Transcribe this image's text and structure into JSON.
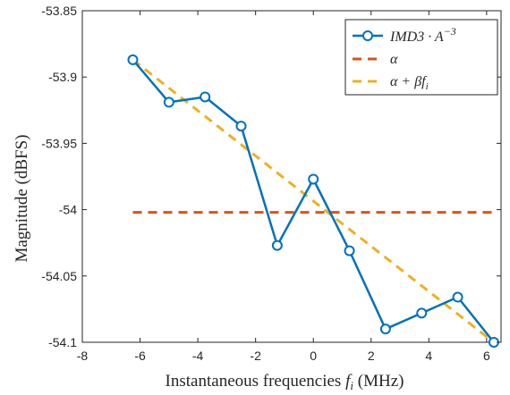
{
  "chart_data": {
    "type": "line",
    "title": "",
    "xlabel": "Instantaneous frequencies f_i (MHz)",
    "xlabel_main": "Instantaneous frequencies ",
    "xlabel_var": "f",
    "xlabel_sub": "i",
    "xlabel_unit": " (MHz)",
    "ylabel": "Magnitude (dBFS)",
    "xlim": [
      -8,
      6.5
    ],
    "ylim": [
      -54.1,
      -53.85
    ],
    "xticks": [
      -8,
      -6,
      -4,
      -2,
      0,
      2,
      4,
      6
    ],
    "xtick_labels": [
      "-8",
      "-6",
      "-4",
      "-2",
      "0",
      "2",
      "4",
      "6"
    ],
    "yticks": [
      -53.85,
      -53.9,
      -53.95,
      -54,
      -54.05,
      -54.1
    ],
    "ytick_labels": [
      "-53.85",
      "-53.9",
      "-53.95",
      "-54",
      "-54.05",
      "-54.1"
    ],
    "grid": true,
    "legend_position": "top-right",
    "series": [
      {
        "name": "IMD3 · A^-3",
        "legend_main": "IMD3 · A",
        "legend_sup": "−3",
        "color": "#0072BD",
        "style": "solid-circle-markers",
        "x": [
          -6.25,
          -5.0,
          -3.75,
          -2.5,
          -1.25,
          0.0,
          1.25,
          2.5,
          3.75,
          5.0,
          6.25
        ],
        "y": [
          -53.887,
          -53.919,
          -53.915,
          -53.937,
          -54.027,
          -53.977,
          -54.031,
          -54.09,
          -54.078,
          -54.066,
          -54.1
        ]
      },
      {
        "name": "α",
        "legend_main": "α",
        "color": "#D95319",
        "style": "dashed",
        "x": [
          -6.25,
          6.25
        ],
        "y": [
          -54.002,
          -54.002
        ]
      },
      {
        "name": "α + βf_i",
        "legend_main": "α + βf",
        "legend_sub": "i",
        "color": "#EDB120",
        "style": "dashed",
        "x": [
          -6.25,
          6.25
        ],
        "y": [
          -53.887,
          -54.1
        ]
      }
    ]
  }
}
